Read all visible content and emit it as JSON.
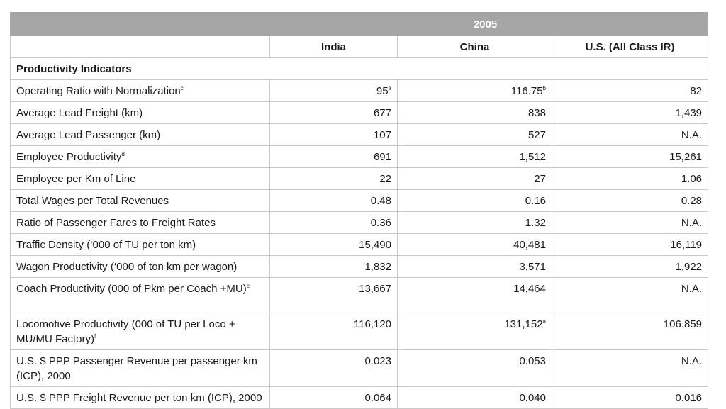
{
  "year": "2005",
  "columns": [
    "India",
    "China",
    "U.S. (All Class IR)"
  ],
  "section_title": "Productivity Indicators",
  "rows": [
    {
      "label": "Operating Ratio with Normalization",
      "label_sup": "c",
      "values": [
        "95",
        "116.75",
        "82"
      ],
      "sups": [
        "a",
        "b",
        ""
      ]
    },
    {
      "label": "Average Lead Freight (km)",
      "label_sup": "",
      "values": [
        "677",
        "838",
        "1,439"
      ],
      "sups": [
        "",
        "",
        ""
      ]
    },
    {
      "label": "Average Lead Passenger (km)",
      "label_sup": "",
      "values": [
        "107",
        "527",
        "N.A."
      ],
      "sups": [
        "",
        "",
        ""
      ]
    },
    {
      "label": "Employee Productivity",
      "label_sup": "d",
      "values": [
        "691",
        "1,512",
        "15,261"
      ],
      "sups": [
        "",
        "",
        ""
      ]
    },
    {
      "label": "Employee per Km of Line",
      "label_sup": "",
      "values": [
        "22",
        "27",
        "1.06"
      ],
      "sups": [
        "",
        "",
        ""
      ]
    },
    {
      "label": "Total Wages per Total Revenues",
      "label_sup": "",
      "values": [
        "0.48",
        "0.16",
        "0.28"
      ],
      "sups": [
        "",
        "",
        ""
      ]
    },
    {
      "label": "Ratio of Passenger Fares to Freight Rates",
      "label_sup": "",
      "values": [
        "0.36",
        "1.32",
        "N.A."
      ],
      "sups": [
        "",
        "",
        ""
      ]
    },
    {
      "label": "Traffic Density (‘000 of TU per ton km)",
      "label_sup": "",
      "values": [
        "15,490",
        "40,481",
        "16,119"
      ],
      "sups": [
        "",
        "",
        ""
      ]
    },
    {
      "label": "Wagon Productivity (‘000 of ton km per wagon)",
      "label_sup": "",
      "values": [
        "1,832",
        "3,571",
        "1,922"
      ],
      "sups": [
        "",
        "",
        ""
      ]
    },
    {
      "label": "Coach Productivity (000 of Pkm per Coach +MU)",
      "label_sup": "e",
      "values": [
        "13,667",
        "14,464",
        "N.A."
      ],
      "sups": [
        "",
        "",
        ""
      ]
    },
    {
      "label": "Locomotive Productivity (000 of TU per Loco + MU/MU Factory)",
      "label_sup": "f",
      "values": [
        "116,120",
        "131,152",
        "106.859"
      ],
      "sups": [
        "",
        "a",
        ""
      ]
    },
    {
      "label": "U.S. $ PPP Passenger Revenue per passenger km (ICP), 2000",
      "label_sup": "",
      "values": [
        "0.023",
        "0.053",
        "N.A."
      ],
      "sups": [
        "",
        "",
        ""
      ]
    },
    {
      "label": "U.S. $ PPP Freight Revenue per ton km (ICP), 2000",
      "label_sup": "",
      "values": [
        "0.064",
        "0.040",
        "0.016"
      ],
      "sups": [
        "",
        "",
        ""
      ]
    }
  ]
}
